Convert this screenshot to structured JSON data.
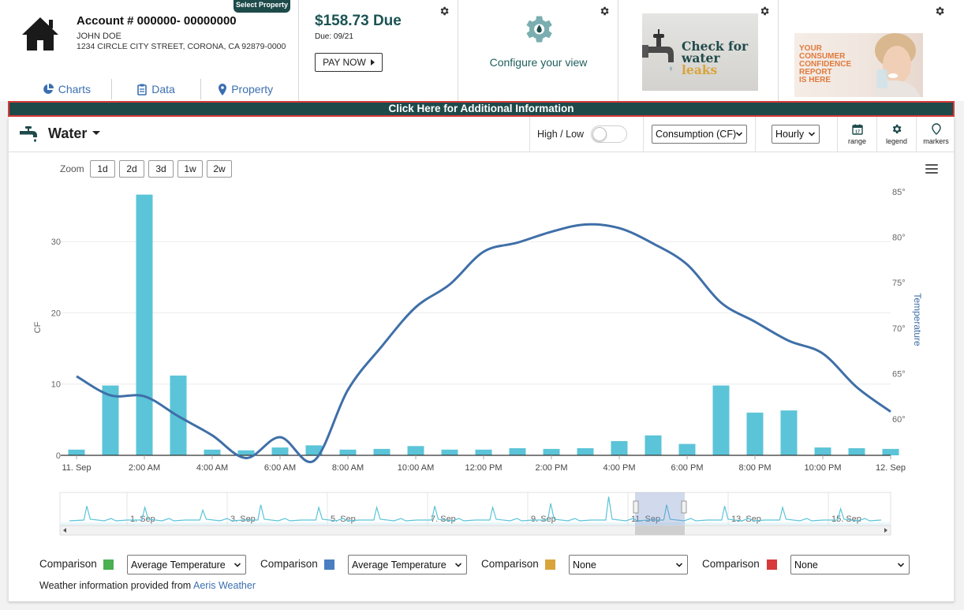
{
  "account": {
    "select_property_label": "Select Property",
    "title": "Account # 000000- 00000000",
    "name": "JOHN DOE",
    "address": "1234 CIRCLE CITY STREET, CORONA, CA 92879-0000",
    "nav": [
      {
        "label": "Charts",
        "icon": "pie-chart-icon"
      },
      {
        "label": "Data",
        "icon": "clipboard-icon"
      },
      {
        "label": "Property",
        "icon": "map-pin-icon"
      }
    ]
  },
  "bill": {
    "amount": "$158.73 Due",
    "due_date": "Due: 09/21",
    "pay_label": "PAY NOW"
  },
  "config": {
    "label": "Configure your view"
  },
  "leak_ad": {
    "line1": "Check for",
    "line2a": "water ",
    "line2b": "leaks"
  },
  "report_ad": {
    "lines": [
      "YOUR",
      "CONSUMER",
      "CONFIDENCE",
      "REPORT",
      "IS HERE"
    ]
  },
  "banner": {
    "text": "Click Here for Additional Information"
  },
  "toolbar": {
    "utility": "Water",
    "high_low_label": "High / Low",
    "high_low_on": false,
    "measure_select": "Consumption (CF)",
    "interval_select": "Hourly",
    "buttons": [
      {
        "label": "range",
        "icon": "calendar-icon"
      },
      {
        "label": "legend",
        "icon": "gear-icon"
      },
      {
        "label": "markers",
        "icon": "marker-icon"
      }
    ]
  },
  "zoom": {
    "label": "Zoom",
    "options": [
      "1d",
      "2d",
      "3d",
      "1w",
      "2w"
    ]
  },
  "colors": {
    "bar": "#5bc4d8",
    "temp_line": "#3f6fa8",
    "navigator_line": "#5bc4d8",
    "brand_dark": "#1e4a4a",
    "comparison": [
      "#4caf50",
      "#4a7ec0",
      "#d9a43c",
      "#d63a3a"
    ]
  },
  "chart_data": {
    "type": "bar",
    "ylabel": "CF",
    "y2label": "Temperature",
    "ylim": [
      0,
      37
    ],
    "y2lim": [
      56,
      85
    ],
    "y_ticks": [
      "0",
      "10",
      "20",
      "30"
    ],
    "y2_ticks": [
      "60°",
      "65°",
      "70°",
      "75°",
      "80°",
      "85°"
    ],
    "x_tick_labels": [
      "11. Sep",
      "2:00 AM",
      "4:00 AM",
      "6:00 AM",
      "8:00 AM",
      "10:00 AM",
      "12:00 PM",
      "2:00 PM",
      "4:00 PM",
      "6:00 PM",
      "8:00 PM",
      "10:00 PM",
      "12. Sep"
    ],
    "hours": [
      "12 AM",
      "1 AM",
      "2 AM",
      "3 AM",
      "4 AM",
      "5 AM",
      "6 AM",
      "7 AM",
      "8 AM",
      "9 AM",
      "10 AM",
      "11 AM",
      "12 PM",
      "1 PM",
      "2 PM",
      "3 PM",
      "4 PM",
      "5 PM",
      "6 PM",
      "7 PM",
      "8 PM",
      "9 PM",
      "10 PM",
      "11 PM",
      "12 AM"
    ],
    "series": [
      {
        "type": "bar",
        "axis": "left",
        "values": [
          0.8,
          9.8,
          36.6,
          11.2,
          0.8,
          0.7,
          1.1,
          1.4,
          0.8,
          0.9,
          1.3,
          0.8,
          0.8,
          1.0,
          0.9,
          1.0,
          2.0,
          2.8,
          1.6,
          9.8,
          6.0,
          6.3,
          1.1,
          1.0,
          0.9
        ]
      },
      {
        "type": "line",
        "axis": "right",
        "values": [
          64.7,
          62.6,
          62.5,
          60.3,
          58.2,
          55.7,
          58.0,
          55.4,
          63.2,
          68.0,
          72.3,
          74.8,
          78.4,
          79.4,
          80.6,
          81.4,
          81.0,
          79.3,
          77.0,
          72.8,
          70.7,
          68.6,
          67.2,
          63.5,
          60.8
        ]
      }
    ],
    "navigator": {
      "labels": [
        "1. Sep",
        "3. Sep",
        "5. Sep",
        "7. Sep",
        "9. Sep",
        "11. Sep",
        "13. Sep",
        "15. Sep"
      ],
      "spikes": [
        0.55,
        0.5,
        0.4,
        0.6,
        0.5,
        0.5,
        0.55,
        0.5,
        0.65,
        0.9,
        0.6,
        0.55,
        0.5,
        0.45
      ]
    }
  },
  "comparisons": [
    {
      "label": "Comparison",
      "value": "Average Temperature"
    },
    {
      "label": "Comparison",
      "value": "Average Temperature"
    },
    {
      "label": "Comparison",
      "value": "None"
    },
    {
      "label": "Comparison",
      "value": "None"
    }
  ],
  "weather": {
    "prefix": "Weather information provided from ",
    "link": "Aeris Weather"
  }
}
